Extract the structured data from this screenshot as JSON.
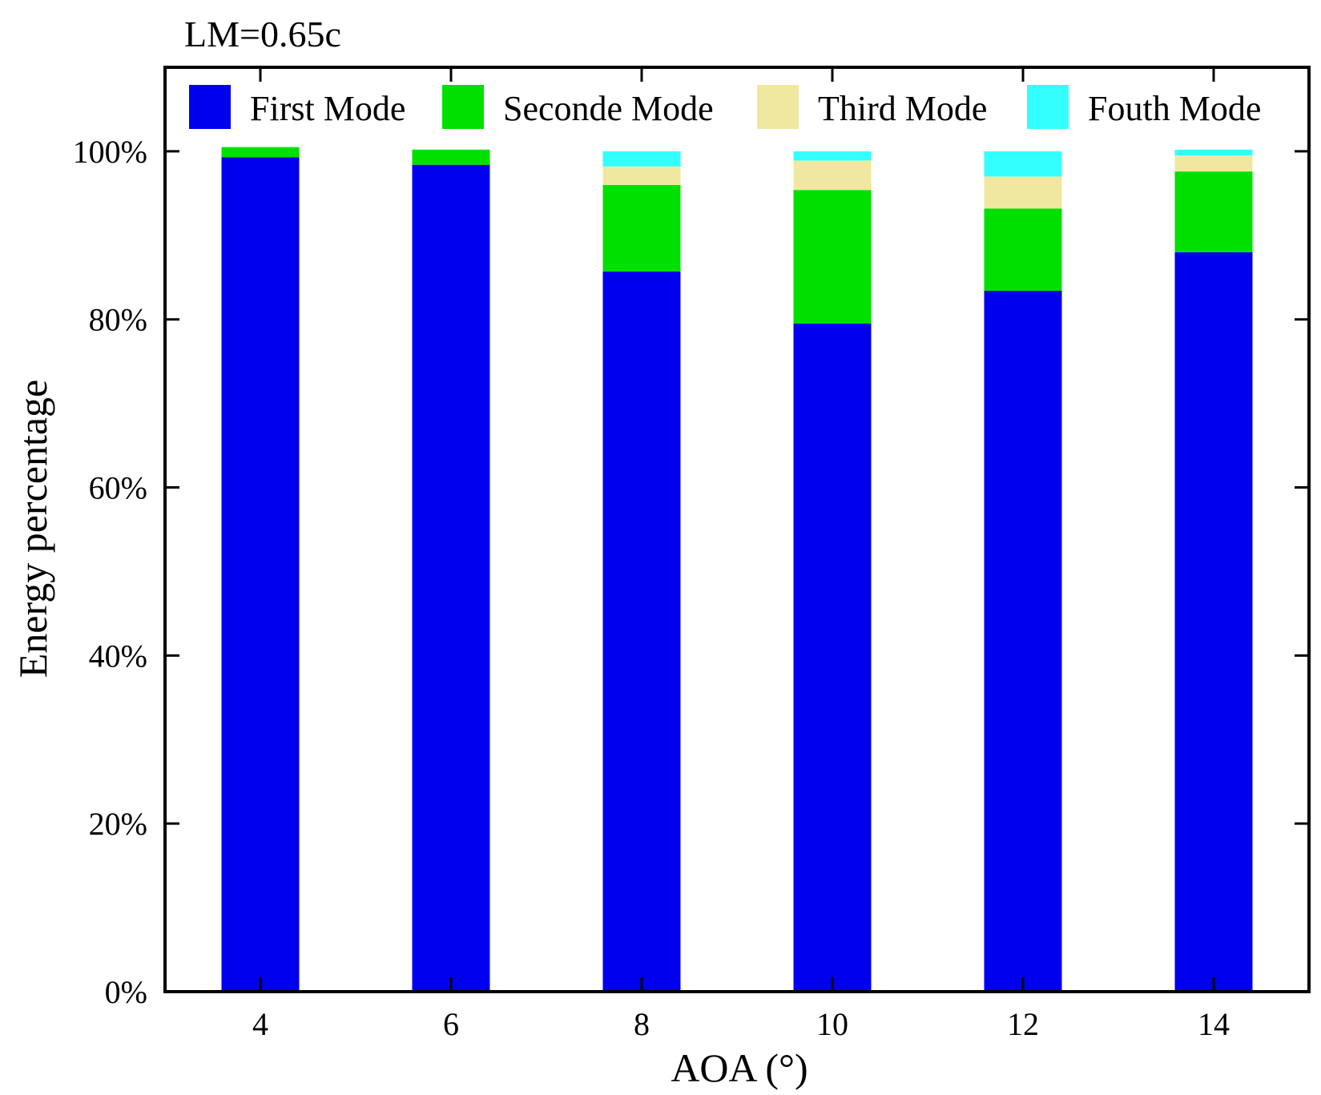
{
  "chart_data": {
    "type": "bar",
    "stacked": true,
    "title": "LM=0.65c",
    "xlabel": "AOA (°)",
    "ylabel": "Energy percentage",
    "categories": [
      "4",
      "6",
      "8",
      "10",
      "12",
      "14"
    ],
    "ylim": [
      0,
      1.1
    ],
    "yticks": [
      0,
      0.2,
      0.4,
      0.6,
      0.8,
      1.0
    ],
    "ytick_labels": [
      "0%",
      "20%",
      "40%",
      "60%",
      "80%",
      "100%"
    ],
    "grid": false,
    "legend_position": "top",
    "series": [
      {
        "name": "First Mode",
        "color": "#0000ee",
        "values": [
          0.993,
          0.984,
          0.857,
          0.795,
          0.834,
          0.88
        ]
      },
      {
        "name": "Seconde Mode",
        "color": "#00e000",
        "values": [
          0.012,
          0.018,
          0.103,
          0.159,
          0.098,
          0.096
        ]
      },
      {
        "name": "Third Mode",
        "color": "#f0e8a0",
        "values": [
          0.0,
          0.0,
          0.022,
          0.035,
          0.038,
          0.019
        ]
      },
      {
        "name": "Fouth Mode",
        "color": "#33ffff",
        "values": [
          0.0,
          0.0,
          0.018,
          0.011,
          0.03,
          0.007
        ]
      }
    ]
  }
}
